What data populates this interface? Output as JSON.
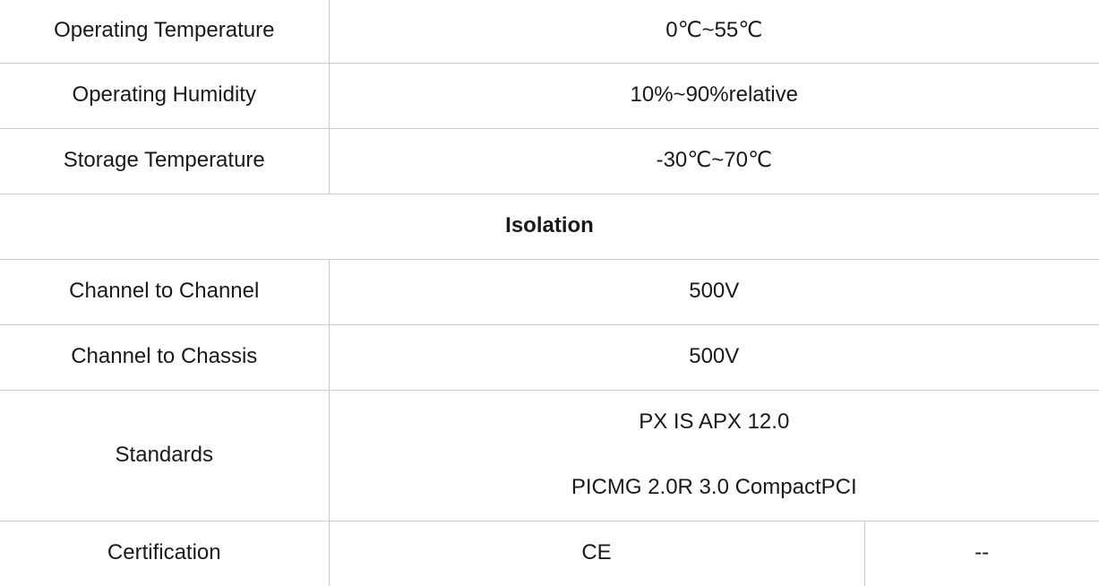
{
  "colors": {
    "line": "#cccccc",
    "text": "#1a1a1a",
    "background": "#ffffff"
  },
  "spec_table": {
    "environment_rows": [
      {
        "label": "Operating Temperature",
        "value": "0℃~55℃"
      },
      {
        "label": "Operating Humidity",
        "value": "10%~90%relative"
      },
      {
        "label": "Storage Temperature",
        "value": "-30℃~70℃"
      }
    ],
    "isolation_section": {
      "header": "Isolation",
      "rows": [
        {
          "label": "Channel to Channel",
          "value": "500V"
        },
        {
          "label": "Channel to Chassis",
          "value": "500V"
        }
      ]
    },
    "standards_row": {
      "label": "Standards",
      "values": [
        "PX IS APX 12.0",
        "PICMG 2.0R 3.0 CompactPCI"
      ]
    },
    "certification_row": {
      "label": "Certification",
      "value_left": "CE",
      "value_right": "--"
    }
  }
}
